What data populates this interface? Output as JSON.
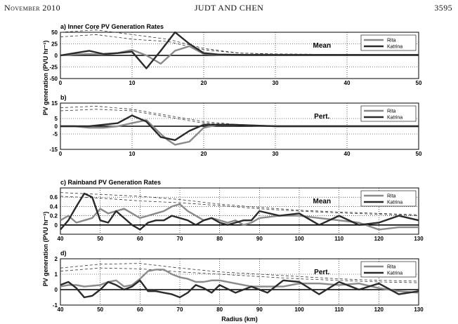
{
  "header": {
    "left": "November 2010",
    "center": "JUDT AND CHEN",
    "right": "3595"
  },
  "ylabel_upper": "PV generation (PVU hr⁻¹)",
  "ylabel_lower": "PV generation (PVU hr⁻¹)",
  "xlabel": "Radius (km)",
  "chart_data": [
    {
      "type": "line",
      "title": "a)  Inner Core PV Generation Rates",
      "annotation": "Mean",
      "xlim": [
        0,
        50
      ],
      "ylim": [
        -50,
        50
      ],
      "xticks": [
        0,
        10,
        20,
        30,
        40,
        50
      ],
      "yticks": [
        -50,
        -25,
        0,
        25,
        50
      ],
      "grid": true,
      "legend": "top-right",
      "series": [
        {
          "name": "Rita",
          "x": [
            0,
            2,
            4,
            6,
            8,
            10,
            12,
            14,
            16,
            18,
            20,
            22,
            26,
            30,
            40,
            50
          ],
          "values": [
            0,
            2,
            3,
            2,
            5,
            12,
            0,
            -18,
            10,
            20,
            3,
            1,
            1,
            1,
            1,
            1
          ]
        },
        {
          "name": "Katrina",
          "x": [
            0,
            2,
            4,
            6,
            8,
            10,
            12,
            14,
            16,
            18,
            20,
            22,
            26,
            30,
            40,
            50
          ],
          "values": [
            0,
            5,
            10,
            3,
            5,
            8,
            -28,
            10,
            50,
            25,
            5,
            2,
            1,
            1,
            1,
            1
          ]
        },
        {
          "name": "",
          "x": [
            0,
            5,
            10,
            15,
            20,
            25,
            30,
            40,
            50
          ],
          "values": [
            50,
            55,
            45,
            35,
            15,
            5,
            3,
            2,
            2
          ]
        },
        {
          "name": "",
          "x": [
            0,
            5,
            10,
            15,
            20,
            25,
            30,
            40,
            50
          ],
          "values": [
            40,
            45,
            35,
            30,
            12,
            5,
            3,
            2,
            2
          ]
        }
      ]
    },
    {
      "type": "line",
      "title": "b)",
      "annotation": "Pert.",
      "xlim": [
        0,
        50
      ],
      "ylim": [
        -15,
        15
      ],
      "xticks": [
        0,
        10,
        20,
        30,
        40,
        50
      ],
      "yticks": [
        -15,
        -5,
        0,
        5,
        15
      ],
      "grid": true,
      "legend": "top-right",
      "series": [
        {
          "name": "Rita",
          "x": [
            0,
            2,
            4,
            6,
            8,
            10,
            12,
            14,
            15,
            16,
            18,
            20,
            22,
            24,
            30,
            40,
            50
          ],
          "values": [
            0,
            0,
            -1,
            -1,
            0,
            2,
            4,
            -5,
            -9,
            -12,
            -10,
            -1,
            1,
            1,
            0,
            0,
            0
          ]
        },
        {
          "name": "Katrina",
          "x": [
            0,
            2,
            4,
            6,
            8,
            10,
            12,
            14,
            16,
            18,
            20,
            22,
            24,
            30,
            40,
            50
          ],
          "values": [
            0,
            0,
            0,
            1,
            2,
            7,
            3,
            -7,
            -9,
            -3,
            1,
            1,
            1,
            0,
            0,
            0
          ]
        },
        {
          "name": "",
          "x": [
            0,
            5,
            10,
            15,
            20,
            25,
            30
          ],
          "values": [
            12,
            13,
            11,
            7,
            3,
            1,
            0
          ]
        },
        {
          "name": "",
          "x": [
            0,
            5,
            10,
            15,
            20,
            25,
            30
          ],
          "values": [
            10,
            11,
            10,
            6,
            2,
            1,
            0
          ]
        }
      ]
    },
    {
      "type": "line",
      "title": "c)  Rainband PV Generation Rates",
      "annotation": "Mean",
      "xlim": [
        40,
        130
      ],
      "ylim": [
        -0.2,
        0.8
      ],
      "xticks": [
        40,
        50,
        60,
        70,
        80,
        90,
        100,
        110,
        120,
        130
      ],
      "yticks": [
        0,
        0.2,
        0.4,
        0.6
      ],
      "grid": true,
      "legend": "top-right",
      "series": [
        {
          "name": "Rita",
          "x": [
            40,
            42,
            44,
            46,
            48,
            50,
            52,
            54,
            56,
            58,
            60,
            62,
            64,
            66,
            68,
            70,
            72,
            74,
            76,
            78,
            80,
            82,
            84,
            86,
            88,
            90,
            95,
            100,
            105,
            110,
            115,
            120,
            125,
            130
          ],
          "values": [
            0.1,
            0.2,
            0.05,
            0.1,
            0.15,
            0.35,
            0.25,
            0.3,
            0.35,
            0.25,
            0.15,
            0.2,
            0.25,
            0.3,
            0.4,
            0.45,
            0.3,
            0.2,
            0.1,
            0.15,
            0.1,
            0.05,
            0.1,
            0.0,
            0.05,
            0.15,
            0.2,
            0.2,
            0.15,
            0.1,
            0.05,
            -0.1,
            -0.05,
            -0.05
          ]
        },
        {
          "name": "Katrina",
          "x": [
            40,
            42,
            44,
            46,
            48,
            50,
            52,
            54,
            56,
            58,
            60,
            62,
            64,
            66,
            68,
            70,
            72,
            74,
            76,
            78,
            80,
            82,
            84,
            86,
            88,
            90,
            95,
            100,
            105,
            110,
            115,
            120,
            125,
            130
          ],
          "values": [
            -0.1,
            0.1,
            0.4,
            0.68,
            0.6,
            0.1,
            0.05,
            0.3,
            0.15,
            0.0,
            -0.1,
            0.05,
            0.1,
            0.1,
            0.2,
            0.15,
            0.1,
            0.0,
            0.1,
            0.15,
            0.05,
            0.0,
            0.05,
            0.1,
            0.1,
            0.3,
            0.2,
            0.25,
            0.0,
            0.2,
            0.0,
            0.05,
            0.2,
            0.1
          ]
        },
        {
          "name": "",
          "x": [
            40,
            50,
            60,
            70,
            80,
            90,
            100,
            110,
            120,
            130
          ],
          "values": [
            0.7,
            0.66,
            0.62,
            0.55,
            0.45,
            0.38,
            0.32,
            0.28,
            0.25,
            0.22
          ]
        },
        {
          "name": "",
          "x": [
            40,
            50,
            60,
            70,
            80,
            90,
            100,
            110,
            120,
            130
          ],
          "values": [
            0.62,
            0.58,
            0.52,
            0.48,
            0.42,
            0.35,
            0.3,
            0.26,
            0.23,
            0.2
          ]
        }
      ]
    },
    {
      "type": "line",
      "title": "d)",
      "annotation": "Pert.",
      "xlim": [
        40,
        130
      ],
      "ylim": [
        -1,
        2
      ],
      "xticks": [
        40,
        50,
        60,
        70,
        80,
        90,
        100,
        110,
        120,
        130
      ],
      "yticks": [
        -1,
        0,
        1,
        2
      ],
      "grid": true,
      "legend": "top-right",
      "series": [
        {
          "name": "Rita",
          "x": [
            40,
            42,
            44,
            46,
            48,
            50,
            52,
            54,
            56,
            58,
            60,
            62,
            64,
            66,
            68,
            70,
            72,
            74,
            76,
            78,
            80,
            84,
            88,
            92,
            96,
            100,
            105,
            110,
            115,
            120,
            125,
            130
          ],
          "values": [
            0.2,
            0.3,
            0.3,
            0.2,
            0.25,
            0.3,
            0.5,
            0.6,
            0.2,
            0.3,
            0.7,
            1.2,
            1.3,
            1.3,
            1.0,
            0.8,
            0.7,
            0.5,
            0.5,
            0.6,
            0.6,
            0.4,
            0.2,
            0.2,
            0.2,
            0.4,
            0.4,
            0.3,
            0.4,
            0.1,
            -0.1,
            -0.2
          ]
        },
        {
          "name": "Katrina",
          "x": [
            40,
            42,
            44,
            46,
            48,
            50,
            52,
            54,
            56,
            58,
            60,
            62,
            64,
            66,
            68,
            70,
            72,
            74,
            76,
            78,
            80,
            84,
            88,
            92,
            96,
            100,
            105,
            110,
            115,
            120,
            125,
            130
          ],
          "values": [
            0.3,
            0.5,
            0.1,
            -0.5,
            -0.4,
            0.0,
            0.5,
            0.3,
            0.0,
            0.2,
            0.6,
            -0.1,
            -0.1,
            -0.2,
            -0.3,
            -0.5,
            -0.2,
            0.3,
            0.1,
            -0.2,
            0.3,
            -0.2,
            0.2,
            -0.2,
            0.6,
            0.5,
            -0.3,
            0.5,
            0.0,
            0.4,
            -0.3,
            -0.1
          ]
        },
        {
          "name": "",
          "x": [
            40,
            50,
            60,
            70,
            80,
            90,
            100,
            110,
            120,
            130
          ],
          "values": [
            1.4,
            1.65,
            1.7,
            1.4,
            1.15,
            1.0,
            0.85,
            0.7,
            0.6,
            0.55
          ]
        },
        {
          "name": "",
          "x": [
            40,
            50,
            60,
            70,
            80,
            90,
            100,
            110,
            120,
            130
          ],
          "values": [
            1.2,
            1.4,
            1.35,
            1.15,
            1.0,
            0.85,
            0.7,
            0.6,
            0.5,
            0.45
          ]
        }
      ]
    }
  ]
}
